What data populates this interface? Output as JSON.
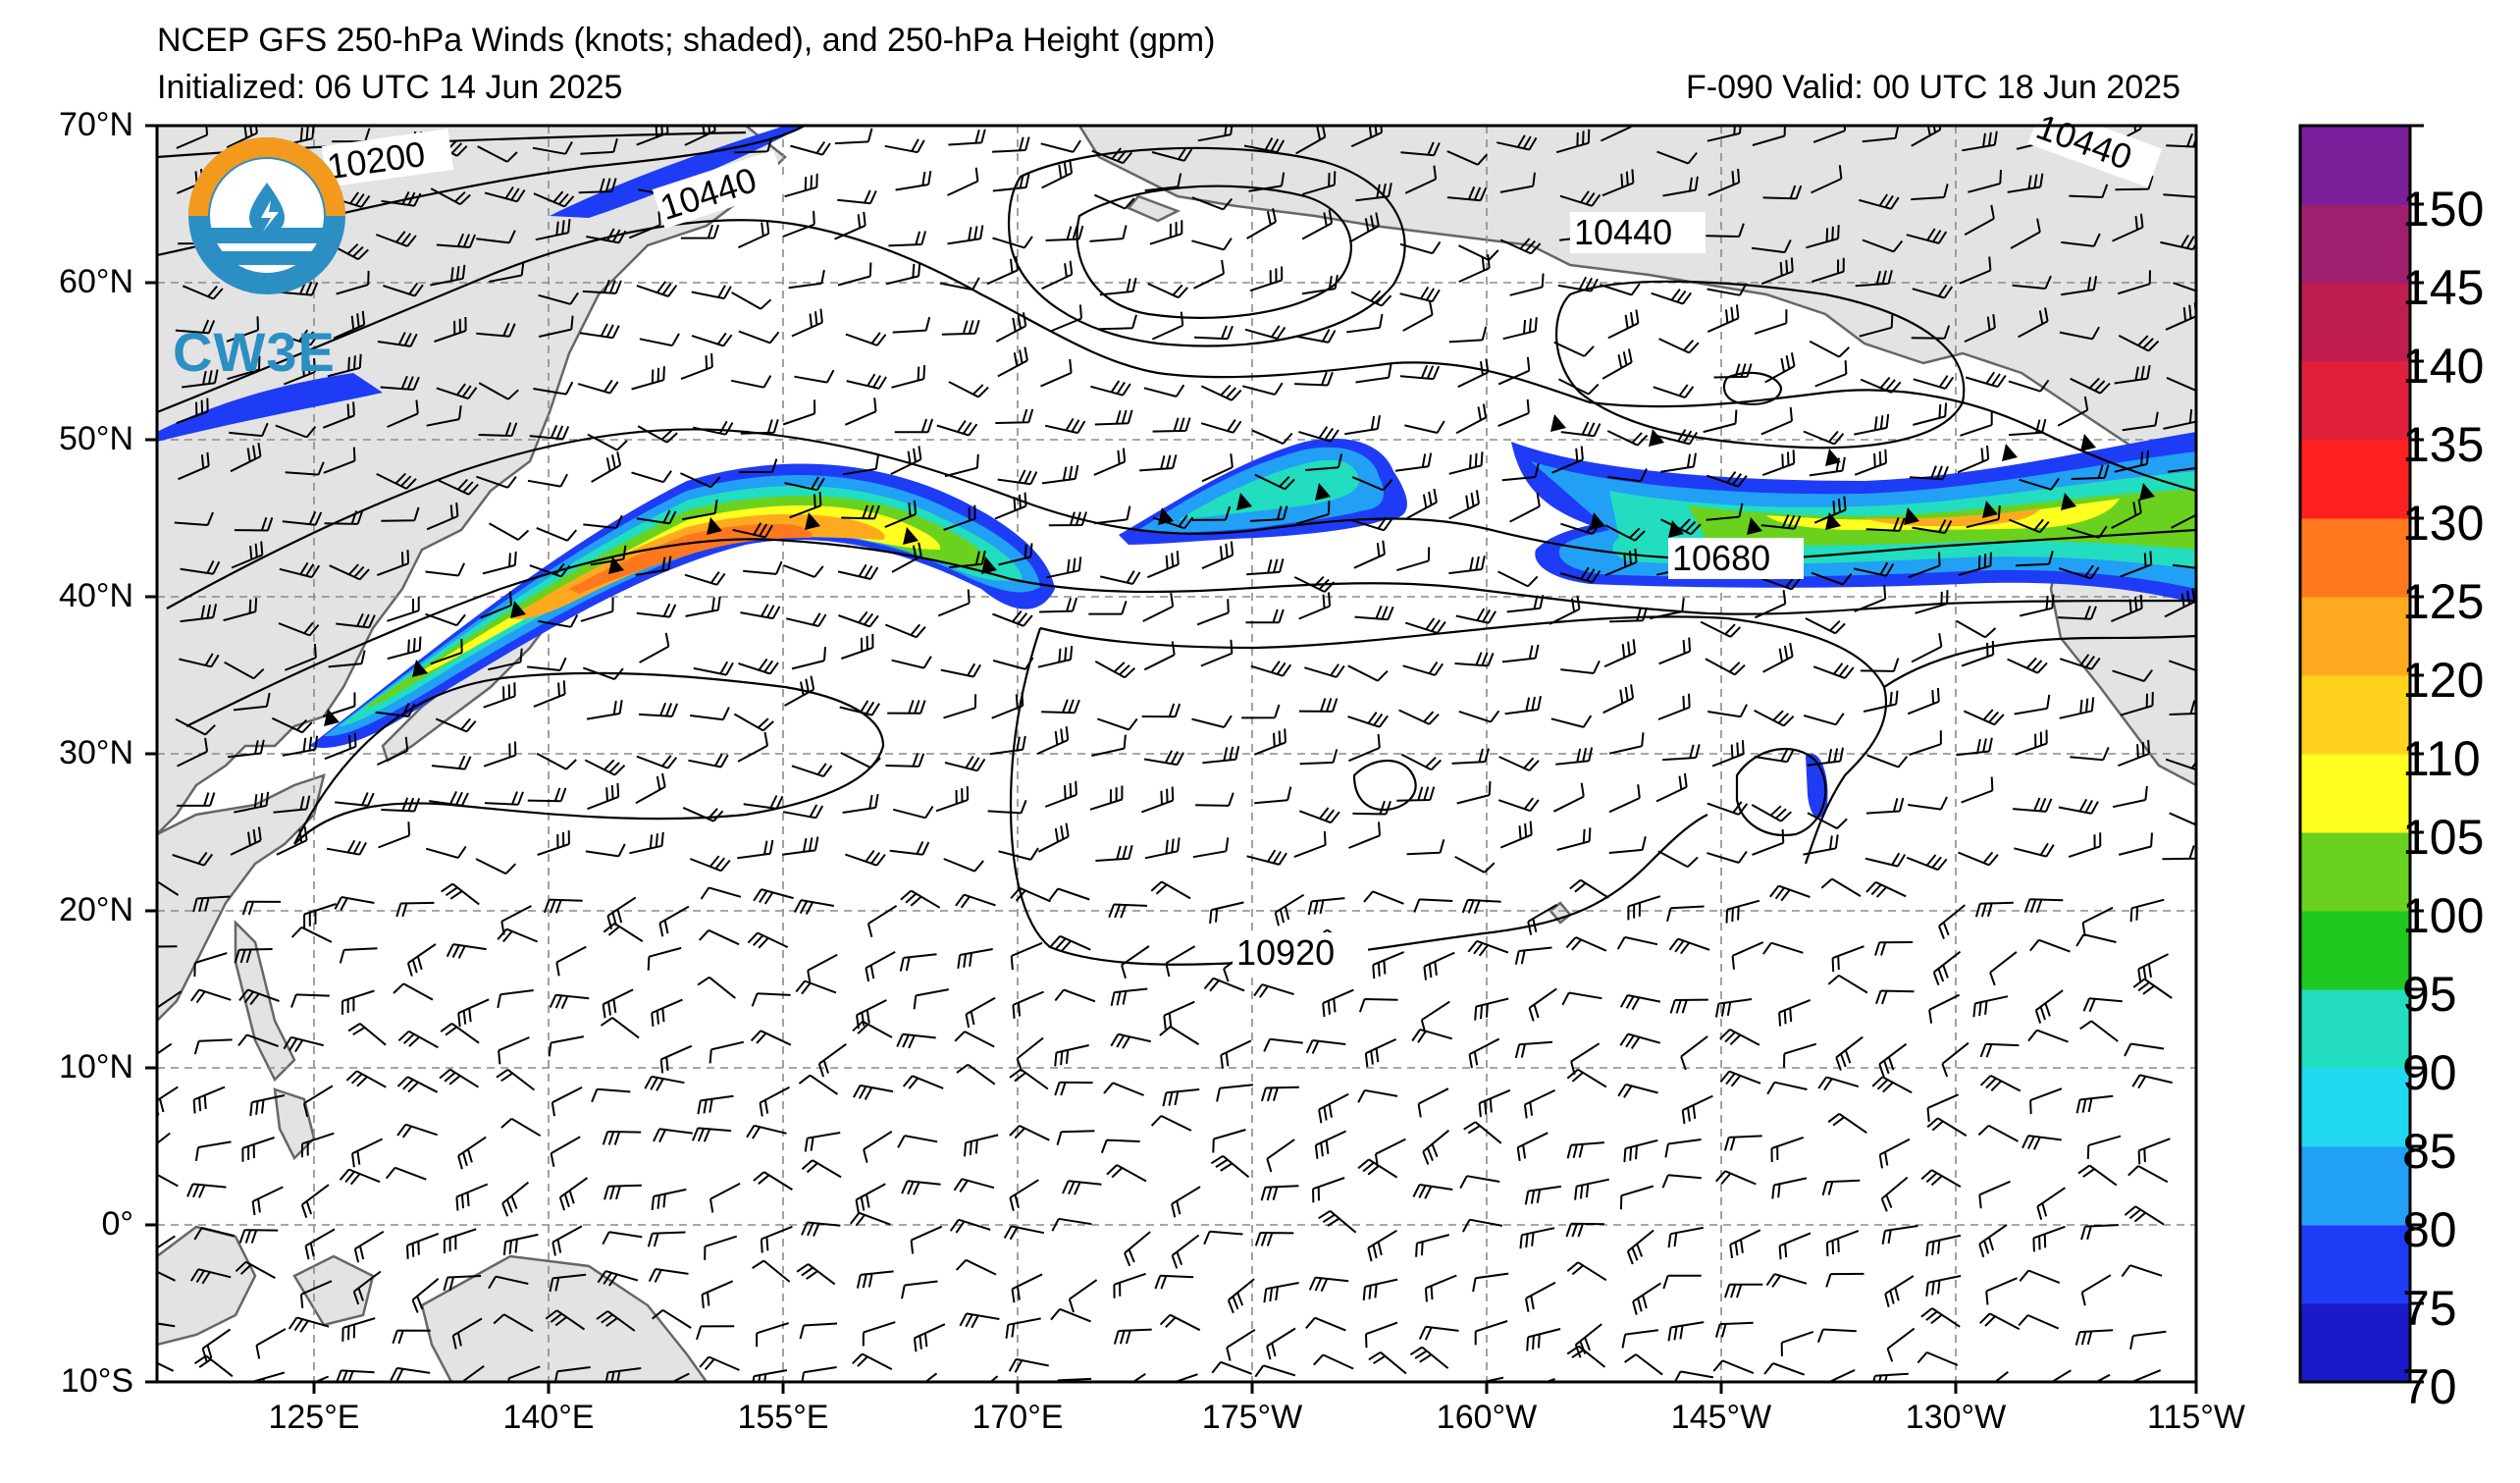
{
  "header": {
    "title": "NCEP GFS 250-hPa Winds (knots; shaded), and 250-hPa Height (gpm)",
    "initialized": "Initialized: 06 UTC 14 Jun 2025",
    "valid": "F-090  Valid: 00 UTC 18 Jun 2025"
  },
  "logo": {
    "text": "CW3E",
    "color": "#2b8fc4",
    "accent": "#f39a1e"
  },
  "axes": {
    "lat_labels": [
      "70°N",
      "60°N",
      "50°N",
      "40°N",
      "30°N",
      "20°N",
      "10°N",
      "0°",
      "10°S"
    ],
    "lon_labels": [
      "125°E",
      "140°E",
      "155°E",
      "170°E",
      "175°W",
      "160°W",
      "145°W",
      "130°W",
      "115°W"
    ]
  },
  "contours": {
    "labels": [
      "10200",
      "10440",
      "10440",
      "10440",
      "10680",
      "10920"
    ]
  },
  "colorbar": {
    "ticks": [
      "150",
      "145",
      "140",
      "135",
      "130",
      "125",
      "120",
      "110",
      "105",
      "100",
      "95",
      "90",
      "85",
      "80",
      "75",
      "70"
    ],
    "colors": [
      "#1a1ac8",
      "#1e3cf5",
      "#22a0f5",
      "#20d8f0",
      "#22ddc0",
      "#1ec81e",
      "#6ad21e",
      "#ffff20",
      "#ffd21e",
      "#ffaa1e",
      "#ff781e",
      "#ff2020",
      "#e0203a",
      "#c01e50",
      "#a01e70",
      "#7a1e9a"
    ]
  }
}
